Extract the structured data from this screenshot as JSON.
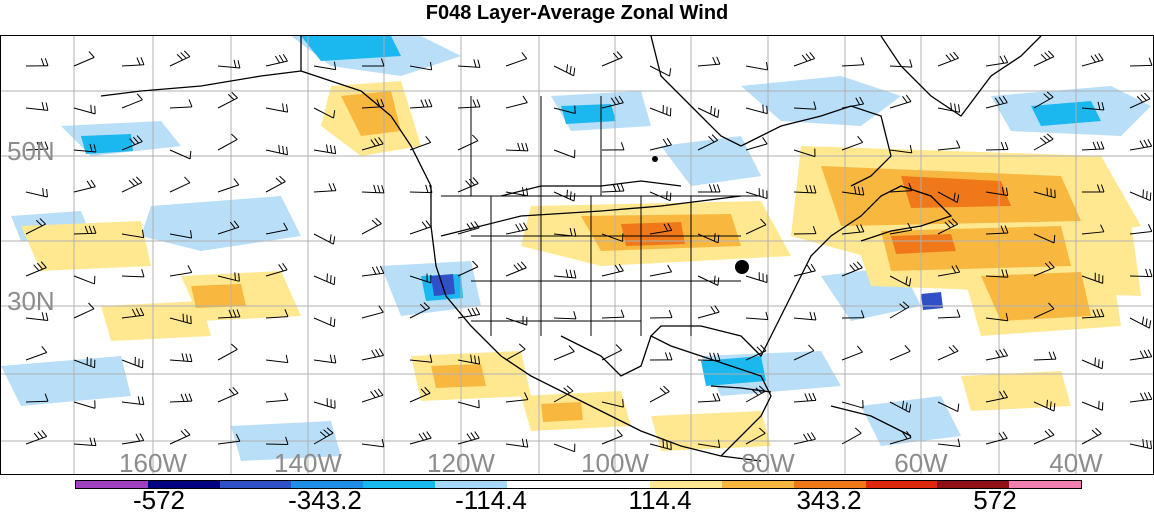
{
  "title": "F048 Layer-Average Zonal Wind",
  "lat_labels": [
    "50N",
    "30N"
  ],
  "lon_labels": [
    "160W",
    "140W",
    "120W",
    "100W",
    "80W",
    "60W",
    "40W"
  ],
  "colorbar": {
    "colors": [
      "#a040c0",
      "#000080",
      "#3050c8",
      "#1e8ee6",
      "#1ab8ee",
      "#a8d8f8",
      "#ffffff",
      "#ffffff",
      "#ffe890",
      "#f8b840",
      "#f07818",
      "#e02810",
      "#901018",
      "#f080b0"
    ],
    "tick_labels": [
      "-572",
      "-343.2",
      "-114.4",
      "114.4",
      "343.2",
      "572"
    ]
  }
}
